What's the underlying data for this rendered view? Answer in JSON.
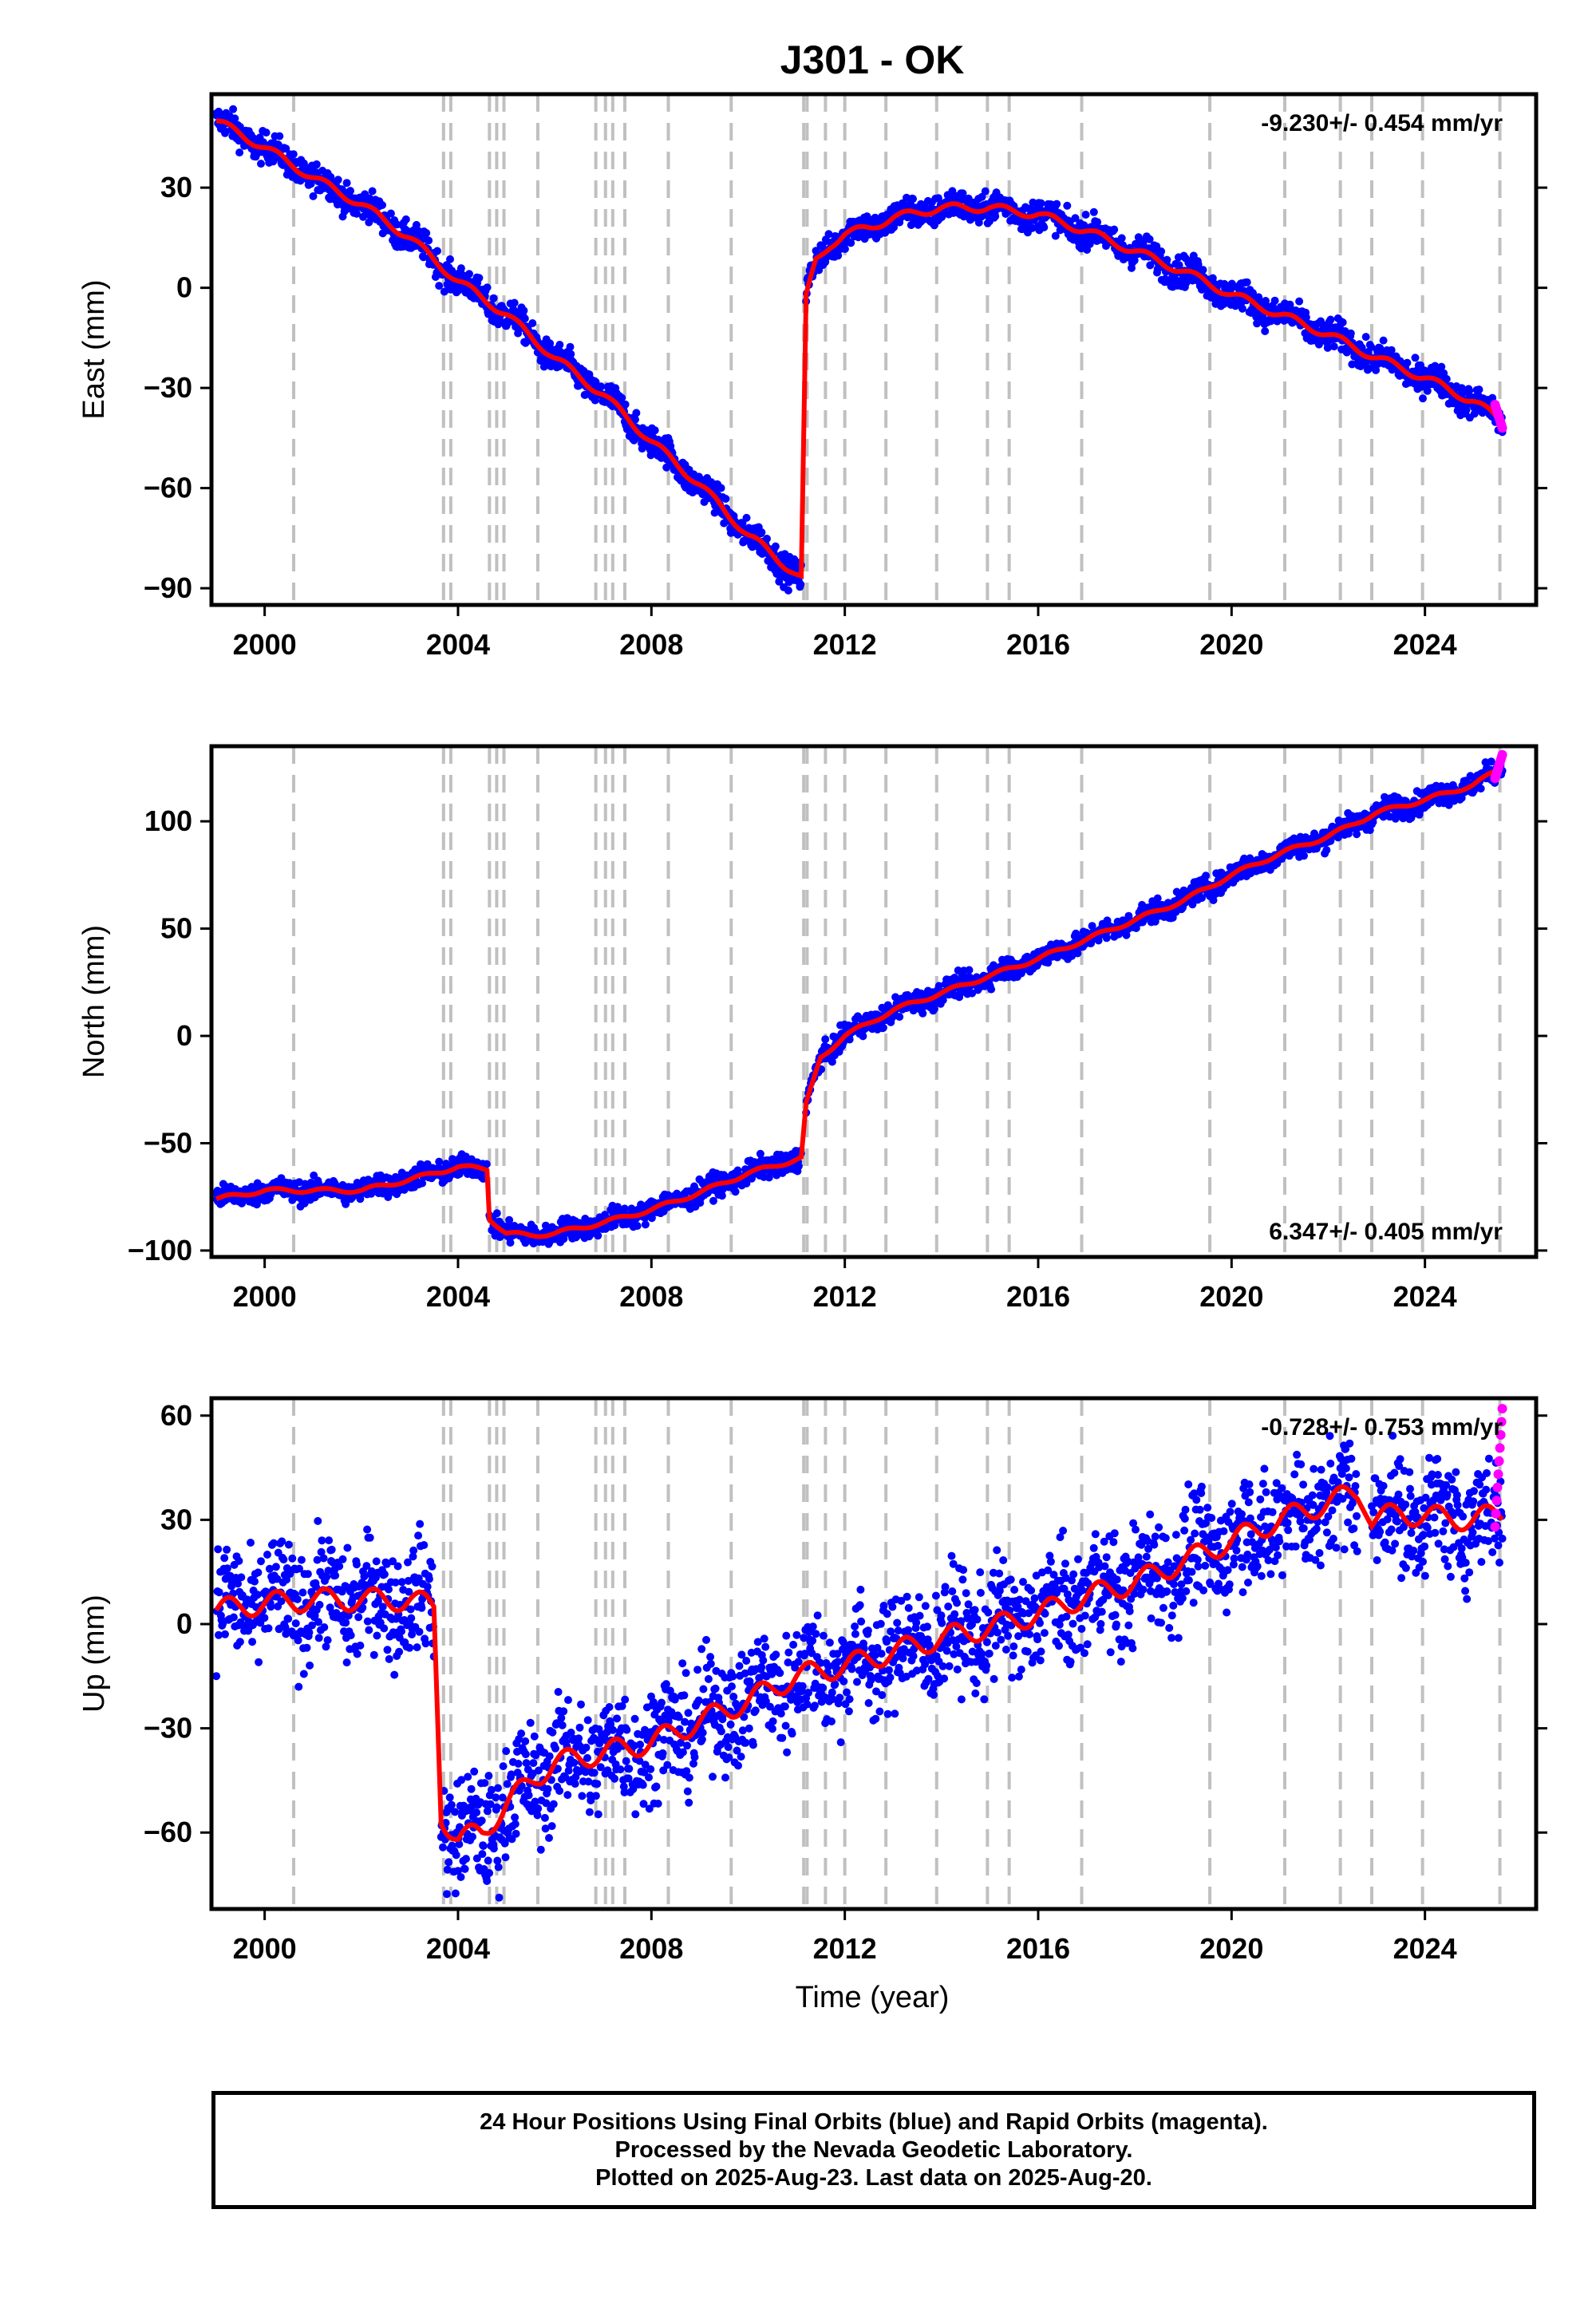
{
  "title": "J301 - OK",
  "xlabel": "Time (year)",
  "colors": {
    "final_orbits": "#0000ff",
    "rapid_orbits": "#ff00ff",
    "model": "#ff0000",
    "event_lines": "#c0c0c0"
  },
  "footer": {
    "line1": "24 Hour Positions Using Final Orbits (blue) and Rapid Orbits (magenta).",
    "line2": "Processed by the Nevada Geodetic Laboratory.",
    "line3": "Plotted on 2025-Aug-23. Last data on 2025-Aug-20."
  },
  "chart_data": [
    {
      "type": "scatter",
      "component": "East",
      "ylabel": "East (mm)",
      "rate_label": "-9.230+/- 0.454 mm/yr",
      "rate_position": "top-right",
      "xlim": [
        1998.9,
        2026.3
      ],
      "ylim": [
        -95,
        58
      ],
      "yticks": [
        -90,
        -60,
        -30,
        0,
        30
      ],
      "xticks": [
        2000,
        2004,
        2008,
        2012,
        2016,
        2020,
        2024
      ],
      "event_lines": [
        2000.6,
        2003.7,
        2003.85,
        2004.65,
        2004.8,
        2004.95,
        2005.65,
        2006.85,
        2007.05,
        2007.2,
        2007.45,
        2008.35,
        2009.65,
        2011.15,
        2011.22,
        2011.6,
        2012.0,
        2012.85,
        2013.9,
        2014.95,
        2015.4,
        2016.9,
        2019.55,
        2021.1,
        2022.25,
        2022.9,
        2023.95,
        2025.55
      ],
      "segments": [
        {
          "t": [
            1999.0,
            2000.0,
            2001.0,
            2002.0,
            2003.0,
            2004.0,
            2005.0,
            2006.0,
            2007.0,
            2008.0,
            2009.0,
            2010.0,
            2011.1
          ],
          "v": [
            50,
            42,
            33,
            25,
            15,
            2,
            -8,
            -21,
            -32,
            -46,
            -59,
            -74,
            -87
          ]
        },
        {
          "t": [
            2011.2,
            2011.4,
            2011.7,
            2012.0,
            2012.5,
            2013.0,
            2014.0,
            2015.0,
            2016.0,
            2017.0,
            2018.0,
            2019.0,
            2020.0,
            2021.0,
            2022.0,
            2023.0,
            2024.0,
            2025.0,
            2025.6
          ],
          "v": [
            -3,
            8,
            13,
            16,
            18,
            21,
            24,
            24,
            22,
            17,
            11,
            5,
            -2,
            -8,
            -14,
            -21,
            -27,
            -34,
            -40
          ]
        }
      ],
      "noise_amp": 2.2,
      "seasonal_amp": 1.5,
      "rapid": {
        "t_start": 2025.45,
        "t_end": 2025.6,
        "v": [
          -35,
          -42
        ]
      }
    },
    {
      "type": "scatter",
      "component": "North",
      "ylabel": "North (mm)",
      "rate_label": "6.347+/- 0.405 mm/yr",
      "rate_position": "bottom-right",
      "xlim": [
        1998.9,
        2026.3
      ],
      "ylim": [
        -103,
        135
      ],
      "yticks": [
        -100,
        -50,
        0,
        50,
        100
      ],
      "xticks": [
        2000,
        2004,
        2008,
        2012,
        2016,
        2020,
        2024
      ],
      "event_lines": [
        2000.6,
        2003.7,
        2003.85,
        2004.65,
        2004.8,
        2004.95,
        2005.65,
        2006.85,
        2007.05,
        2007.2,
        2007.45,
        2008.35,
        2009.65,
        2011.15,
        2011.22,
        2011.6,
        2012.0,
        2012.85,
        2013.9,
        2014.95,
        2015.4,
        2016.9,
        2019.55,
        2021.1,
        2022.25,
        2022.9,
        2023.95,
        2025.55
      ],
      "segments": [
        {
          "t": [
            1999.0,
            2000.0,
            2000.6,
            2002.0,
            2003.0,
            2004.0,
            2004.6
          ],
          "v": [
            -76,
            -72,
            -72,
            -72,
            -67,
            -61,
            -62
          ]
        },
        {
          "t": [
            2004.65,
            2005.0,
            2005.5,
            2006.0,
            2007.0,
            2008.0,
            2009.0,
            2010.0,
            2011.1
          ],
          "v": [
            -85,
            -92,
            -93,
            -92,
            -87,
            -81,
            -73,
            -64,
            -57
          ]
        },
        {
          "t": [
            2011.2,
            2011.5,
            2012.0,
            2013.0,
            2014.0,
            2015.0,
            2016.0,
            2017.0,
            2018.0,
            2019.0,
            2020.0,
            2021.0,
            2022.0,
            2023.0,
            2024.0,
            2025.0,
            2025.6
          ],
          "v": [
            -32,
            -10,
            0,
            12,
            20,
            28,
            36,
            45,
            54,
            63,
            75,
            85,
            93,
            104,
            110,
            117,
            125
          ]
        }
      ],
      "noise_amp": 2.5,
      "seasonal_amp": 1.2,
      "rapid": {
        "t_start": 2025.45,
        "t_end": 2025.6,
        "v": [
          120,
          131
        ]
      }
    },
    {
      "type": "scatter",
      "component": "Up",
      "ylabel": "Up (mm)",
      "rate_label": "-0.728+/- 0.753 mm/yr",
      "rate_position": "top-right",
      "xlim": [
        1998.9,
        2026.3
      ],
      "ylim": [
        -82,
        65
      ],
      "yticks": [
        -60,
        -30,
        0,
        30,
        60
      ],
      "xticks": [
        2000,
        2004,
        2008,
        2012,
        2016,
        2020,
        2024
      ],
      "event_lines": [
        2000.6,
        2003.7,
        2003.85,
        2004.65,
        2004.8,
        2004.95,
        2005.65,
        2006.85,
        2007.05,
        2007.2,
        2007.45,
        2008.35,
        2009.65,
        2011.15,
        2011.22,
        2011.6,
        2012.0,
        2012.85,
        2013.9,
        2014.95,
        2015.4,
        2016.9,
        2019.55,
        2021.1,
        2022.25,
        2022.9,
        2023.95,
        2025.55
      ],
      "segments": [
        {
          "t": [
            1999.0,
            2000.0,
            2001.0,
            2002.0,
            2003.0,
            2003.5
          ],
          "v": [
            4,
            6,
            7,
            7,
            7,
            5
          ]
        },
        {
          "t": [
            2003.65,
            2004.0,
            2004.5,
            2005.0,
            2005.6,
            2006.0,
            2007.0,
            2008.0,
            2009.0,
            2010.0,
            2011.0,
            2012.0,
            2013.0,
            2014.0,
            2015.0,
            2016.0,
            2017.0,
            2018.0,
            2019.0,
            2020.0,
            2021.0,
            2022.0,
            2022.6
          ],
          "v": [
            -55,
            -62,
            -60,
            -52,
            -44,
            -40,
            -37,
            -34,
            -28,
            -22,
            -15,
            -12,
            -8,
            -4,
            -1,
            3,
            8,
            12,
            18,
            24,
            30,
            35,
            38
          ]
        },
        {
          "t": [
            2022.9,
            2023.5,
            2024.0,
            2025.0,
            2025.6
          ],
          "v": [
            30,
            32,
            31,
            30,
            32
          ]
        }
      ],
      "noise_amp": 8,
      "seasonal_amp": 4,
      "rapid": {
        "t_start": 2025.45,
        "t_end": 2025.6,
        "v": [
          28,
          62
        ]
      }
    }
  ]
}
